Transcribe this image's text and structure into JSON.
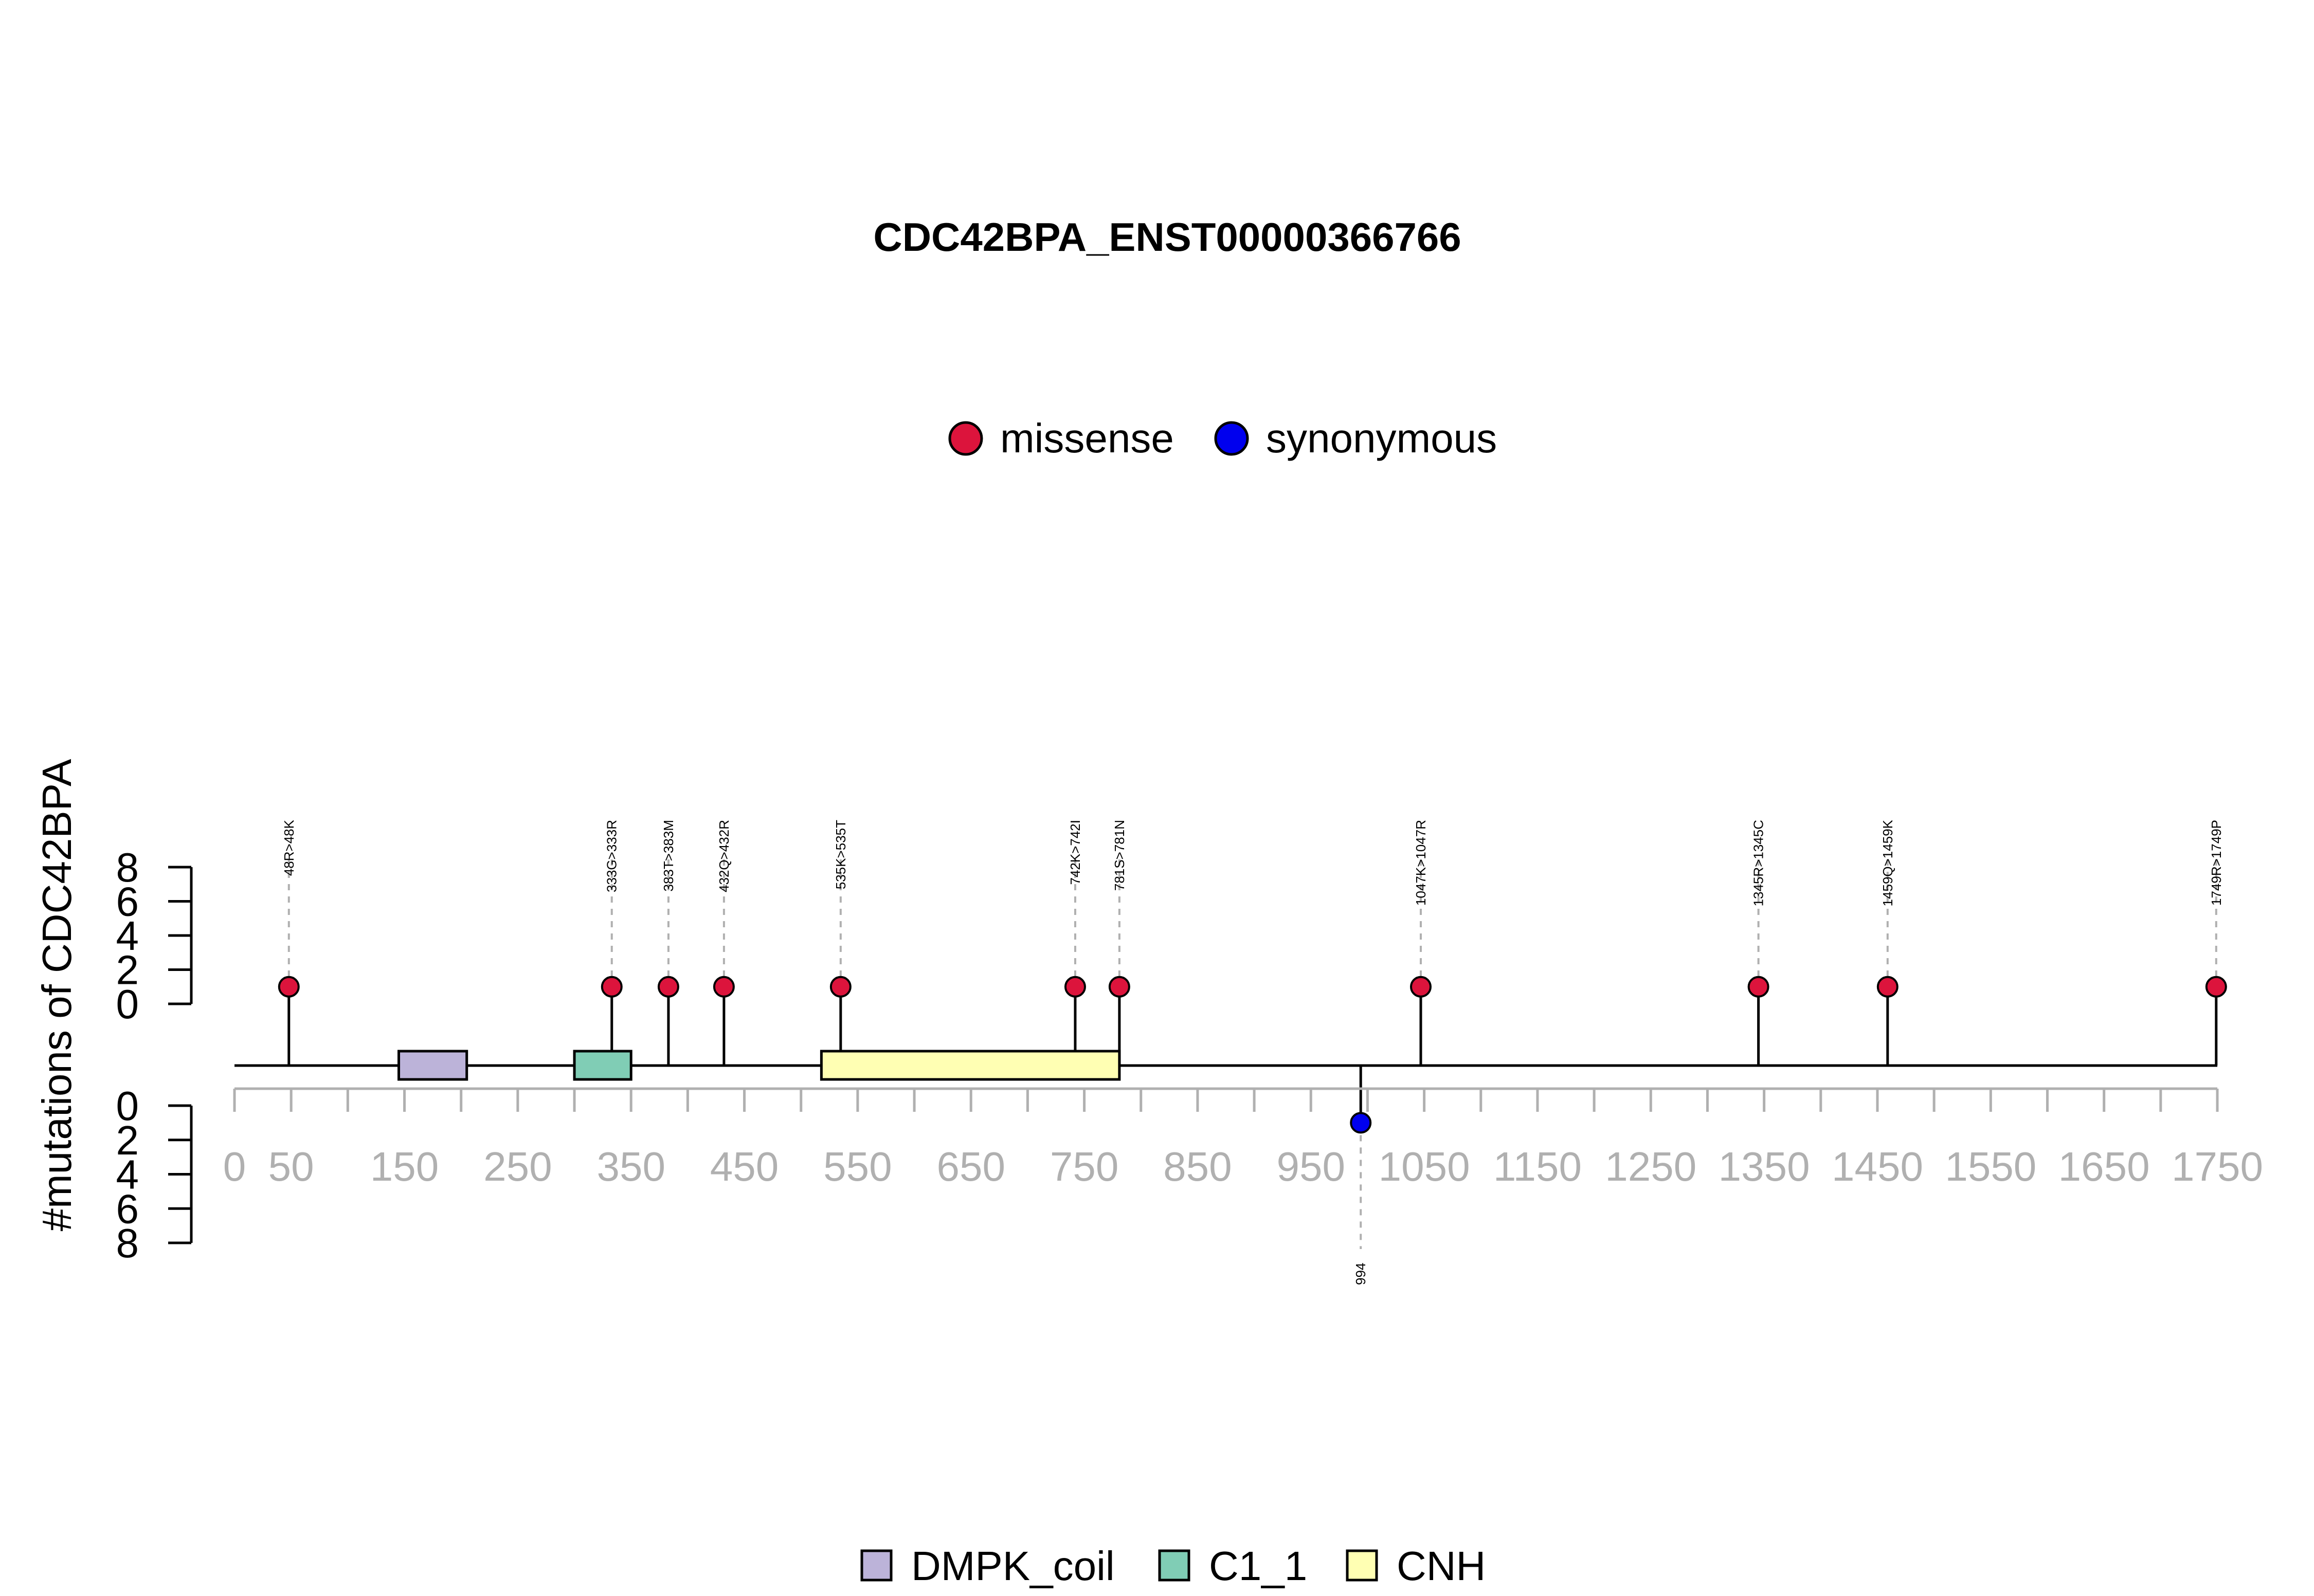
{
  "chart_data": {
    "type": "lollipop",
    "title": "CDC42BPA_ENST00000366766",
    "ylabel": "#mutations of CDC42BPA",
    "xlabel": "",
    "xlim": [
      0,
      1750
    ],
    "x_ticks": [
      0,
      50,
      150,
      250,
      350,
      450,
      550,
      650,
      750,
      850,
      950,
      1050,
      1150,
      1250,
      1350,
      1450,
      1550,
      1650,
      1750
    ],
    "minor_tick_step": 50,
    "protein_length": 1750,
    "y_ticks_up": [
      0,
      2,
      4,
      6,
      8
    ],
    "y_ticks_down": [
      0,
      2,
      4,
      6,
      8
    ],
    "ylim": [
      0,
      8
    ],
    "legend_mutations": [
      {
        "name": "missense",
        "color": "#dc143c"
      },
      {
        "name": "synonymous",
        "color": "#0000ee"
      }
    ],
    "legend_domains": [
      {
        "name": "DMPK_coil",
        "color": "#bcb3d9"
      },
      {
        "name": "C1_1",
        "color": "#80cdb5"
      },
      {
        "name": "CNH",
        "color": "#ffffb3"
      }
    ],
    "domains": [
      {
        "name": "DMPK_coil",
        "start": 145,
        "end": 205,
        "color": "#bcb3d9"
      },
      {
        "name": "C1_1",
        "start": 300,
        "end": 350,
        "color": "#80cdb5"
      },
      {
        "name": "CNH",
        "start": 518,
        "end": 781,
        "color": "#ffffb3"
      }
    ],
    "mutations_up": [
      {
        "position": 48,
        "label": "48R>48K",
        "count": 1,
        "type": "missense"
      },
      {
        "position": 333,
        "label": "333G>333R",
        "count": 1,
        "type": "missense"
      },
      {
        "position": 383,
        "label": "383T>383M",
        "count": 1,
        "type": "missense"
      },
      {
        "position": 432,
        "label": "432Q>432R",
        "count": 1,
        "type": "missense"
      },
      {
        "position": 535,
        "label": "535K>535T",
        "count": 1,
        "type": "missense"
      },
      {
        "position": 742,
        "label": "742K>742I",
        "count": 1,
        "type": "missense"
      },
      {
        "position": 781,
        "label": "781S>781N",
        "count": 1,
        "type": "missense"
      },
      {
        "position": 1047,
        "label": "1047K>1047R",
        "count": 1,
        "type": "missense"
      },
      {
        "position": 1345,
        "label": "1345R>1345C",
        "count": 1,
        "type": "missense"
      },
      {
        "position": 1459,
        "label": "1459Q>1459K",
        "count": 1,
        "type": "missense"
      },
      {
        "position": 1749,
        "label": "1749R>1749P",
        "count": 1,
        "type": "missense"
      }
    ],
    "mutations_down": [
      {
        "position": 994,
        "label": "994",
        "count": 1,
        "type": "synonymous"
      }
    ]
  }
}
